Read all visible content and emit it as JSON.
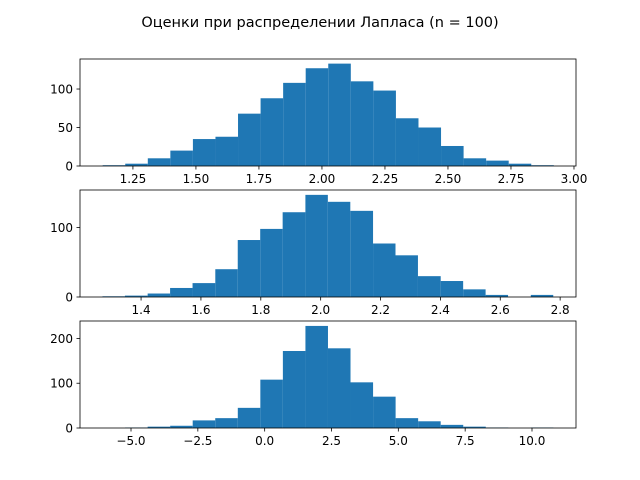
{
  "title": "Оценки при распределении Лапласа (n = 100)",
  "chart_data": [
    {
      "type": "histogram",
      "color": "#1f77b4",
      "bins": [
        1.13,
        1.2195,
        1.309,
        1.3985,
        1.488,
        1.5775,
        1.667,
        1.7565,
        1.846,
        1.9355,
        2.025,
        2.1145,
        2.204,
        2.2935,
        2.383,
        2.4725,
        2.562,
        2.6515,
        2.741,
        2.8305,
        2.92
      ],
      "values": [
        1,
        3,
        10,
        20,
        35,
        38,
        68,
        88,
        108,
        127,
        133,
        110,
        98,
        62,
        50,
        26,
        10,
        7,
        3,
        1
      ],
      "xlim": [
        1.04,
        3.008
      ],
      "ylim": [
        0,
        139
      ],
      "xticks": [
        {
          "value": 1.25,
          "label": "1.25"
        },
        {
          "value": 1.5,
          "label": "1.50"
        },
        {
          "value": 1.75,
          "label": "1.75"
        },
        {
          "value": 2.0,
          "label": "2.00"
        },
        {
          "value": 2.25,
          "label": "2.25"
        },
        {
          "value": 2.5,
          "label": "2.50"
        },
        {
          "value": 2.75,
          "label": "2.75"
        },
        {
          "value": 3.0,
          "label": "3.00"
        }
      ],
      "yticks": [
        0,
        50,
        100
      ]
    },
    {
      "type": "histogram",
      "color": "#1f77b4",
      "bins": [
        1.271,
        1.346,
        1.422,
        1.497,
        1.572,
        1.648,
        1.723,
        1.798,
        1.873,
        1.949,
        2.024,
        2.099,
        2.175,
        2.25,
        2.325,
        2.401,
        2.476,
        2.551,
        2.626,
        2.702,
        2.777
      ],
      "values": [
        1,
        2,
        5,
        13,
        20,
        40,
        82,
        98,
        122,
        147,
        137,
        124,
        77,
        60,
        30,
        23,
        11,
        3,
        0,
        3
      ],
      "xlim": [
        1.196,
        2.853
      ],
      "ylim": [
        0,
        154
      ],
      "xticks": [
        1.4,
        1.6,
        1.8,
        {
          "value": 2.0,
          "label": "2.0"
        },
        2.2,
        2.4,
        2.6,
        2.8
      ],
      "yticks": [
        0,
        100
      ]
    },
    {
      "type": "histogram",
      "color": "#1f77b4",
      "bins": [
        -6.065,
        -5.222,
        -4.378,
        -3.535,
        -2.692,
        -1.849,
        -1.005,
        -0.162,
        0.681,
        1.525,
        2.368,
        3.211,
        4.055,
        4.898,
        5.741,
        6.584,
        7.428,
        8.271,
        9.114,
        9.958,
        10.801
      ],
      "values": [
        0,
        1,
        3,
        5,
        17,
        22,
        45,
        108,
        172,
        228,
        178,
        102,
        70,
        22,
        15,
        7,
        3,
        1,
        0,
        1
      ],
      "xlim": [
        -6.908,
        11.646
      ],
      "ylim": [
        0,
        239
      ],
      "xticks": [
        {
          "value": -5,
          "label": "−5.0"
        },
        {
          "value": -2.5,
          "label": "−2.5"
        },
        {
          "value": 0,
          "label": "0.0"
        },
        {
          "value": 2.5,
          "label": "2.5"
        },
        {
          "value": 5,
          "label": "5.0"
        },
        {
          "value": 7.5,
          "label": "7.5"
        },
        {
          "value": 10,
          "label": "10.0"
        }
      ],
      "yticks": [
        0,
        100,
        200
      ]
    }
  ]
}
